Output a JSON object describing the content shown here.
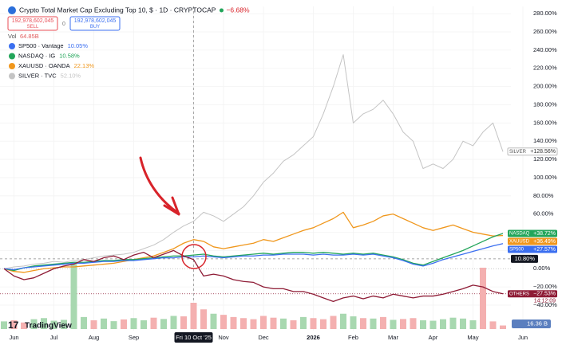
{
  "header": {
    "title": "Crypto Total Market Cap Excluding Top 10, $ · 1D · CRYPTOCAP",
    "change": "−6.68%",
    "sell_price": "192,978,602,045",
    "sell": "SELL",
    "spread": "0",
    "buy_price": "192,978,602,045",
    "buy": "BUY",
    "volume_label": "Vol",
    "volume_value": "64.85B",
    "brand": "TradingView"
  },
  "chart_data": {
    "type": "line",
    "categories": [
      null,
      "Jun",
      null,
      null,
      null,
      "Jul",
      null,
      null,
      null,
      "Aug",
      null,
      null,
      null,
      "Sep",
      null,
      null,
      null,
      null,
      null,
      "Fri 10 Oct '25",
      null,
      null,
      "Nov",
      null,
      null,
      null,
      "Dec",
      null,
      null,
      null,
      null,
      "2026",
      null,
      null,
      null,
      "Feb",
      null,
      null,
      null,
      "Mar",
      null,
      null,
      null,
      "Apr",
      null,
      null,
      null,
      "May",
      null,
      null,
      null,
      null,
      "Jun"
    ],
    "ylim": [
      -68,
      288
    ],
    "yticks": [
      {
        "value": -40,
        "label": "−40.00%"
      },
      {
        "value": -20,
        "label": "−20.00%"
      },
      {
        "value": 0,
        "label": "0.00%"
      },
      {
        "value": 20,
        "label": "20.00%"
      },
      {
        "value": 40,
        "label": "40.00%"
      },
      {
        "value": 60,
        "label": "60.00%"
      },
      {
        "value": 80,
        "label": "80.00%"
      },
      {
        "value": 100,
        "label": "100.00%"
      },
      {
        "value": 120,
        "label": "120.00%"
      },
      {
        "value": 140,
        "label": "140.00%"
      },
      {
        "value": 160,
        "label": "160.00%"
      },
      {
        "value": 180,
        "label": "180.00%"
      },
      {
        "value": 200,
        "label": "200.00%"
      },
      {
        "value": 220,
        "label": "220.00%"
      },
      {
        "value": 240,
        "label": "240.00%"
      },
      {
        "value": 260,
        "label": "260.00%"
      },
      {
        "value": 280,
        "label": "280.00%"
      }
    ],
    "grid": true,
    "crosshair": {
      "y": 10.8,
      "y_label": "10.80%"
    },
    "series": [
      {
        "tag": "OTHERS",
        "color": "#8e1b35",
        "countdown": "14:12:09",
        "values": [
          0,
          -8,
          -12,
          -10,
          -5,
          0,
          3,
          5,
          10,
          8,
          12,
          14,
          10,
          15,
          18,
          12,
          16,
          20,
          14,
          10,
          -8,
          -6,
          -8,
          -12,
          -14,
          -15,
          -20,
          -22,
          -22,
          -25,
          -25,
          -28,
          -32,
          -36,
          -32,
          -30,
          -33,
          -30,
          -32,
          -28,
          -30,
          -32,
          -30,
          -30,
          -28,
          -25,
          -22,
          -18,
          -20,
          -25,
          -27.53,
          null,
          null
        ],
        "value_labels": [
          null,
          null,
          null,
          null,
          null,
          null,
          null,
          null,
          null,
          null,
          null,
          null,
          null,
          null,
          null,
          null,
          null,
          null,
          null,
          null,
          null,
          null,
          null,
          null,
          null,
          null,
          null,
          null,
          null,
          null,
          null,
          null,
          null,
          null,
          null,
          null,
          null,
          null,
          null,
          null,
          null,
          null,
          null,
          null,
          null,
          null,
          null,
          null,
          null,
          null,
          "−27.53%",
          null,
          null
        ]
      },
      {
        "name": "SP500 · Vantage",
        "tag": "SP500",
        "legend_value": "10.05%",
        "color": "#3b6ff0",
        "values": [
          0,
          -1,
          1,
          2,
          3,
          4,
          5,
          6,
          6,
          7,
          8,
          8,
          9,
          9,
          10,
          11,
          12,
          12,
          13,
          13,
          14,
          13,
          12,
          13,
          14,
          14,
          15,
          15,
          16,
          16,
          16,
          15,
          16,
          15,
          15,
          16,
          15,
          16,
          14,
          12,
          9,
          5,
          3,
          6,
          10,
          13,
          16,
          19,
          22,
          25,
          27.57,
          null,
          null
        ],
        "value_labels": [
          null,
          null,
          null,
          null,
          null,
          null,
          null,
          null,
          null,
          null,
          null,
          null,
          null,
          null,
          null,
          null,
          null,
          null,
          null,
          null,
          null,
          null,
          null,
          null,
          null,
          null,
          null,
          null,
          null,
          null,
          null,
          null,
          null,
          null,
          null,
          null,
          null,
          null,
          null,
          null,
          null,
          null,
          null,
          null,
          null,
          null,
          null,
          null,
          null,
          null,
          "+27.57%",
          null,
          null
        ]
      },
      {
        "name": "NASDAQ · IG",
        "tag": "NASDAQ",
        "legend_value": "10.58%",
        "color": "#22a55a",
        "values": [
          0,
          -2,
          1,
          3,
          4,
          5,
          6,
          7,
          7,
          8,
          9,
          9,
          10,
          10,
          11,
          12,
          13,
          14,
          14,
          15,
          16,
          14,
          13,
          14,
          15,
          16,
          17,
          16,
          17,
          18,
          18,
          17,
          18,
          17,
          16,
          17,
          16,
          17,
          15,
          13,
          10,
          6,
          4,
          8,
          12,
          16,
          20,
          25,
          30,
          35,
          38.72,
          null,
          null
        ],
        "value_labels": [
          null,
          null,
          null,
          null,
          null,
          null,
          null,
          null,
          null,
          null,
          null,
          null,
          null,
          null,
          null,
          null,
          null,
          null,
          null,
          null,
          null,
          null,
          null,
          null,
          null,
          null,
          null,
          null,
          null,
          null,
          null,
          null,
          null,
          null,
          null,
          null,
          null,
          null,
          null,
          null,
          null,
          null,
          null,
          null,
          null,
          null,
          null,
          null,
          null,
          null,
          "+38.72%",
          null,
          null
        ]
      },
      {
        "name": "XAUUSD · OANDA",
        "tag": "XAUUSD",
        "legend_value": "22.13%",
        "color": "#f0971c",
        "values": [
          0,
          -3,
          -4,
          -2,
          0,
          1,
          2,
          2,
          3,
          4,
          5,
          6,
          8,
          10,
          12,
          14,
          18,
          22,
          28,
          32,
          30,
          24,
          22,
          24,
          26,
          28,
          32,
          30,
          34,
          38,
          42,
          45,
          50,
          55,
          62,
          45,
          48,
          52,
          58,
          60,
          55,
          50,
          45,
          42,
          45,
          48,
          44,
          40,
          38,
          36,
          36.49,
          null,
          null
        ],
        "value_labels": [
          null,
          null,
          null,
          null,
          null,
          null,
          null,
          null,
          null,
          null,
          null,
          null,
          null,
          null,
          null,
          null,
          null,
          null,
          null,
          null,
          null,
          null,
          null,
          null,
          null,
          null,
          null,
          null,
          null,
          null,
          null,
          null,
          null,
          null,
          null,
          null,
          null,
          null,
          null,
          null,
          null,
          null,
          null,
          null,
          null,
          null,
          null,
          null,
          null,
          null,
          "+36.49%",
          null,
          null
        ]
      },
      {
        "name": "SILVER · TVC",
        "tag": "SILVER",
        "legend_value": "52.10%",
        "color": "#c4c4c4",
        "values": [
          0,
          2,
          3,
          5,
          6,
          8,
          7,
          9,
          10,
          12,
          14,
          15,
          16,
          18,
          22,
          26,
          32,
          40,
          47,
          52,
          62,
          58,
          52,
          60,
          68,
          80,
          95,
          105,
          118,
          125,
          135,
          145,
          170,
          200,
          235,
          160,
          170,
          175,
          185,
          170,
          150,
          140,
          110,
          115,
          110,
          120,
          140,
          135,
          150,
          160,
          128.56,
          null,
          null
        ],
        "value_labels": [
          null,
          null,
          null,
          null,
          null,
          null,
          null,
          null,
          null,
          null,
          null,
          null,
          null,
          null,
          null,
          null,
          null,
          null,
          null,
          null,
          null,
          null,
          null,
          null,
          null,
          null,
          null,
          null,
          null,
          null,
          null,
          null,
          null,
          null,
          null,
          null,
          null,
          null,
          null,
          null,
          null,
          null,
          null,
          null,
          null,
          null,
          null,
          null,
          null,
          null,
          "+128.56%",
          null,
          null
        ]
      }
    ],
    "volume": {
      "up_color": "#a8d8b0",
      "down_color": "#f4b0b0",
      "ylim": [
        0,
        400
      ],
      "values": [
        35,
        40,
        30,
        45,
        50,
        38,
        42,
        300,
        55,
        40,
        48,
        36,
        44,
        50,
        40,
        52,
        46,
        60,
        58,
        120,
        90,
        70,
        65,
        55,
        50,
        45,
        60,
        52,
        48,
        40,
        55,
        50,
        45,
        60,
        70,
        58,
        50,
        48,
        55,
        42,
        46,
        50,
        40,
        38,
        45,
        52,
        48,
        40,
        280,
        35,
        16.36,
        null,
        null
      ],
      "value_labels": [
        null,
        null,
        null,
        null,
        null,
        null,
        null,
        null,
        null,
        null,
        null,
        null,
        null,
        null,
        null,
        null,
        null,
        null,
        null,
        null,
        null,
        null,
        null,
        null,
        null,
        null,
        null,
        null,
        null,
        null,
        null,
        null,
        null,
        null,
        null,
        null,
        null,
        null,
        null,
        null,
        null,
        null,
        null,
        null,
        null,
        null,
        null,
        null,
        null,
        null,
        "16.36 B",
        null,
        null
      ]
    }
  }
}
